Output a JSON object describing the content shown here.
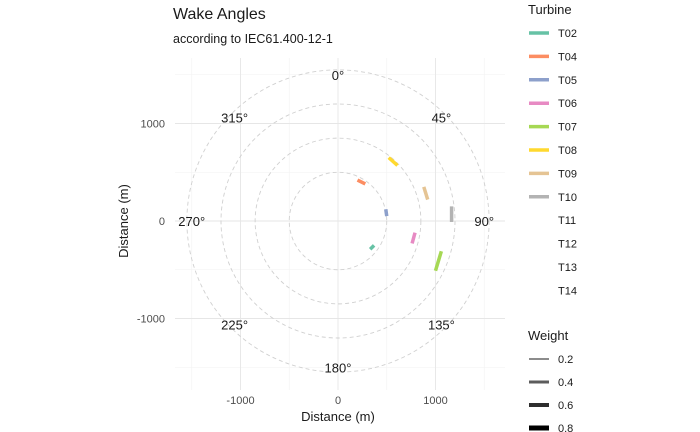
{
  "title": "Wake Angles",
  "subtitle": "according to IEC61.400-12-1",
  "chart_data": {
    "type": "scatter",
    "title": "Wake Angles",
    "subtitle": "according to IEC61.400-12-1",
    "xlabel": "Distance (m)",
    "ylabel": "Distance (m)",
    "xlim": [
      -1600,
      1700
    ],
    "ylim": [
      -1600,
      1600
    ],
    "x_ticks": [
      -1000,
      0,
      1000
    ],
    "y_ticks": [
      -1000,
      0,
      1000
    ],
    "x_tick_labels": [
      "-1000",
      "0",
      "1000"
    ],
    "y_tick_labels": [
      "-1000",
      "0",
      "1000"
    ],
    "grid": true,
    "circle_radii": [
      500,
      850,
      1200,
      1550
    ],
    "angle_labels": [
      {
        "label": "0°",
        "angle": 0
      },
      {
        "label": "45°",
        "angle": 45
      },
      {
        "label": "90°",
        "angle": 90
      },
      {
        "label": "135°",
        "angle": 135
      },
      {
        "label": "180°",
        "angle": 180
      },
      {
        "label": "225°",
        "angle": 225
      },
      {
        "label": "270°",
        "angle": 270
      },
      {
        "label": "315°",
        "angle": 315
      }
    ],
    "series": [
      {
        "name": "T02",
        "color": "#66C2A5",
        "x": [
          330,
          370
        ],
        "y": [
          -290,
          -250
        ]
      },
      {
        "name": "T04",
        "color": "#FC8D62",
        "x": [
          200,
          280
        ],
        "y": [
          420,
          380
        ]
      },
      {
        "name": "T05",
        "color": "#8DA0CB",
        "x": [
          490,
          500
        ],
        "y": [
          120,
          50
        ]
      },
      {
        "name": "T06",
        "color": "#E78AC3",
        "x": [
          760,
          790
        ],
        "y": [
          -230,
          -120
        ]
      },
      {
        "name": "T07",
        "color": "#A6D854",
        "x": [
          1000,
          1060
        ],
        "y": [
          -510,
          -310
        ]
      },
      {
        "name": "T08",
        "color": "#FFD92F",
        "x": [
          520,
          610
        ],
        "y": [
          650,
          570
        ]
      },
      {
        "name": "T09",
        "color": "#E5C494",
        "x": [
          880,
          920
        ],
        "y": [
          350,
          220
        ]
      },
      {
        "name": "T10",
        "color": "#B3B3B3",
        "x": [
          1165,
          1165
        ],
        "y": [
          150,
          -10
        ]
      },
      {
        "name": "T11",
        "color": "#FFFFFF",
        "x": [],
        "y": []
      },
      {
        "name": "T12",
        "color": "#FFFFFF",
        "x": [],
        "y": []
      },
      {
        "name": "T13",
        "color": "#FFFFFF",
        "x": [],
        "y": []
      },
      {
        "name": "T14",
        "color": "#FFFFFF",
        "x": [],
        "y": []
      }
    ],
    "legend_turbine": {
      "title": "Turbine",
      "placement": "right",
      "items": [
        "T02",
        "T04",
        "T05",
        "T06",
        "T07",
        "T08",
        "T09",
        "T10",
        "T11",
        "T12",
        "T13",
        "T14"
      ]
    },
    "legend_weight": {
      "title": "Weight",
      "placement": "bottom-right",
      "items": [
        {
          "label": "0.2",
          "color": "#8c8c8c"
        },
        {
          "label": "0.4",
          "color": "#5c5c5c"
        },
        {
          "label": "0.6",
          "color": "#2e2e2e"
        },
        {
          "label": "0.8",
          "color": "#000000"
        }
      ]
    }
  }
}
